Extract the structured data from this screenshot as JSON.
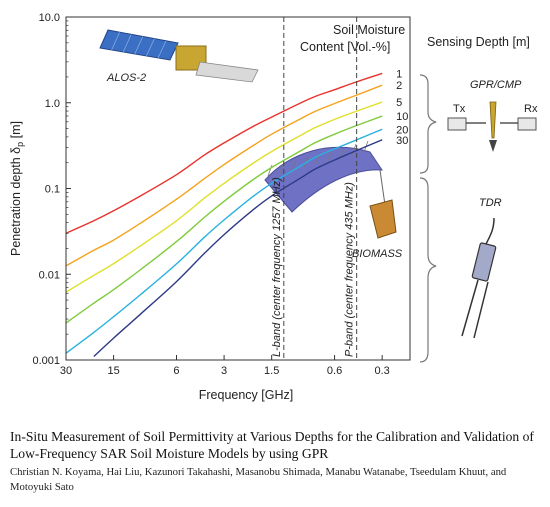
{
  "chart_data": {
    "type": "line",
    "xlabel": "Frequency [GHz]",
    "ylabel_main": "Penetration depth δ",
    "ylabel_sub": "p",
    "ylabel_unit": " [m]",
    "x_reversed": true,
    "x_scale": "log",
    "y_scale": "log",
    "xlim_ghz": [
      30,
      0.2
    ],
    "ylim": [
      0.001,
      10
    ],
    "x_ticks": [
      {
        "value": 30,
        "label": "30"
      },
      {
        "value": 15,
        "label": "15"
      },
      {
        "value": 6,
        "label": "6"
      },
      {
        "value": 3,
        "label": "3"
      },
      {
        "value": 1.5,
        "label": "1.5"
      },
      {
        "value": 0.6,
        "label": "0.6"
      },
      {
        "value": 0.3,
        "label": "0.3"
      }
    ],
    "y_ticks": [
      {
        "value": 10,
        "label": "10.0"
      },
      {
        "value": 1,
        "label": "1.0"
      },
      {
        "value": 0.1,
        "label": "0.1"
      },
      {
        "value": 0.01,
        "label": "0.01"
      },
      {
        "value": 0.001,
        "label": "0.001"
      }
    ],
    "legend_title_line1": "Soil Moisture",
    "legend_title_line2": "Content [Vol.-%]",
    "x_samples_ghz": [
      30,
      20,
      15,
      10,
      6,
      4,
      3,
      2,
      1.5,
      1.0,
      0.8,
      0.6,
      0.45,
      0.3
    ],
    "series": [
      {
        "name": "1",
        "color": "#e8322a",
        "values": [
          0.03,
          0.042,
          0.055,
          0.083,
          0.145,
          0.245,
          0.34,
          0.52,
          0.68,
          0.98,
          1.18,
          1.42,
          1.72,
          2.2
        ]
      },
      {
        "name": "2",
        "color": "#f5a21c",
        "values": [
          0.0125,
          0.019,
          0.025,
          0.04,
          0.075,
          0.13,
          0.19,
          0.31,
          0.43,
          0.64,
          0.79,
          0.98,
          1.2,
          1.6
        ]
      },
      {
        "name": "5",
        "color": "#e0df2a",
        "values": [
          0.0062,
          0.0097,
          0.0133,
          0.0218,
          0.042,
          0.077,
          0.115,
          0.193,
          0.27,
          0.41,
          0.51,
          0.64,
          0.78,
          1.02
        ]
      },
      {
        "name": "10",
        "color": "#7fcb3a",
        "values": [
          0.0027,
          0.0046,
          0.0066,
          0.0115,
          0.024,
          0.046,
          0.071,
          0.124,
          0.176,
          0.27,
          0.34,
          0.43,
          0.53,
          0.7
        ]
      },
      {
        "name": "20",
        "color": "#29b1df",
        "values": [
          0.0012,
          0.0021,
          0.0032,
          0.0059,
          0.0132,
          0.027,
          0.043,
          0.079,
          0.115,
          0.18,
          0.23,
          0.29,
          0.36,
          0.49
        ]
      },
      {
        "name": "30",
        "color": "#2e3a86",
        "values": [
          null,
          0.0011,
          0.0018,
          0.0035,
          0.0082,
          0.0175,
          0.029,
          0.055,
          0.082,
          0.13,
          0.168,
          0.215,
          0.27,
          0.37
        ]
      }
    ],
    "reference_lines": [
      {
        "x_ghz": 1.257,
        "label": "L-band (center frequency 1257 MHz)"
      },
      {
        "x_ghz": 0.435,
        "label": "P-band (center frequency 435 MHz)"
      }
    ],
    "annotations": {
      "alos": "ALOS-2",
      "biomass": "BIOMASS",
      "sensing_depth": "Sensing Depth [m]",
      "gpr": "GPR/CMP",
      "tx": "Tx",
      "rx": "Rx",
      "tdr": "TDR"
    },
    "grid": false,
    "legend_placement": "right"
  },
  "paper": {
    "title": "In-Situ Measurement of Soil Permittivity at Various Depths for the Calibration and Validation of Low-Frequency SAR Soil Moisture Models by using GPR",
    "authors": "Christian N. Koyama, Hai Liu, Kazunori Takahashi, Masanobu Shimada, Manabu Watanabe, Tseedulam Khuut, and Motoyuki Sato"
  },
  "colors": {
    "axis": "#333333",
    "satellite_panel": "#3a6fc4",
    "satellite_body": "#c9a531",
    "biomass_antenna": "#6f72c4",
    "tx": "#d33a2a",
    "rx": "#2f63c4"
  }
}
